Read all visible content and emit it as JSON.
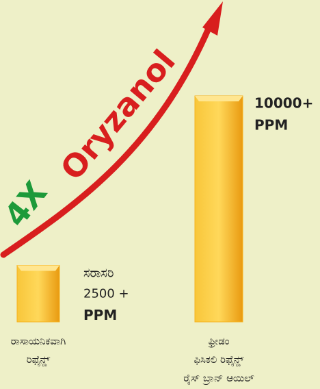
{
  "chart_data": {
    "type": "bar",
    "annotation": {
      "prefix": "4X",
      "text": "Oryzanol"
    },
    "categories": [
      "ರಾಸಾಯನಿಕವಾಗಿ\nರಿಫೈನ್ಡ್",
      "ಫ್ರೀಡಂ\nಫಿಸಿಕಲಿ ರಿಫೈನ್ಡ್\nರೈಸ್ ಬ್ರಾನ್ ಆಯಿಲ್"
    ],
    "values": [
      2500,
      10000
    ],
    "value_labels": [
      "2500 +",
      "10000+"
    ],
    "value_prefixes": [
      "ಸರಾಸರಿ",
      null
    ],
    "unit": "PPM",
    "color": "#f6b21e"
  }
}
